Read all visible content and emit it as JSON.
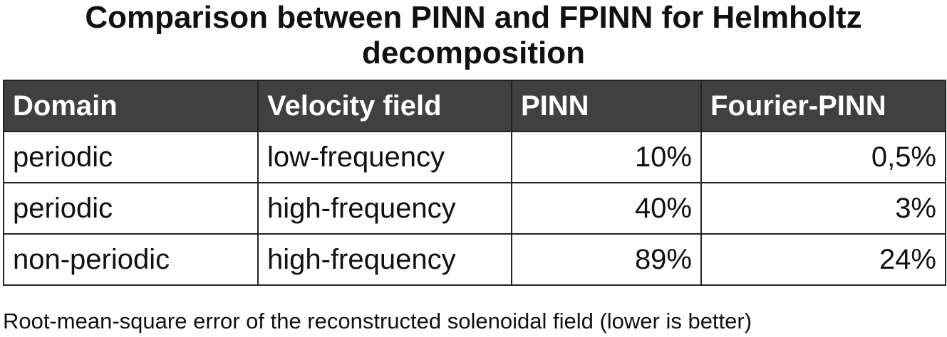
{
  "header": {
    "title_lines": [
      "Comparison between PINN and FPINN for Helmholtz",
      "decomposition"
    ]
  },
  "table": {
    "columns": [
      "Domain",
      "Velocity field",
      "PINN",
      "Fourier-PINN"
    ],
    "rows": [
      [
        "periodic",
        "low-frequency",
        "10%",
        "0,5%"
      ],
      [
        "periodic",
        "high-frequency",
        "40%",
        "3%"
      ],
      [
        "non-periodic",
        "high-frequency",
        "89%",
        "24%"
      ]
    ]
  },
  "caption": "Root-mean-square error of the reconstructed solenoidal field (lower is better)"
}
